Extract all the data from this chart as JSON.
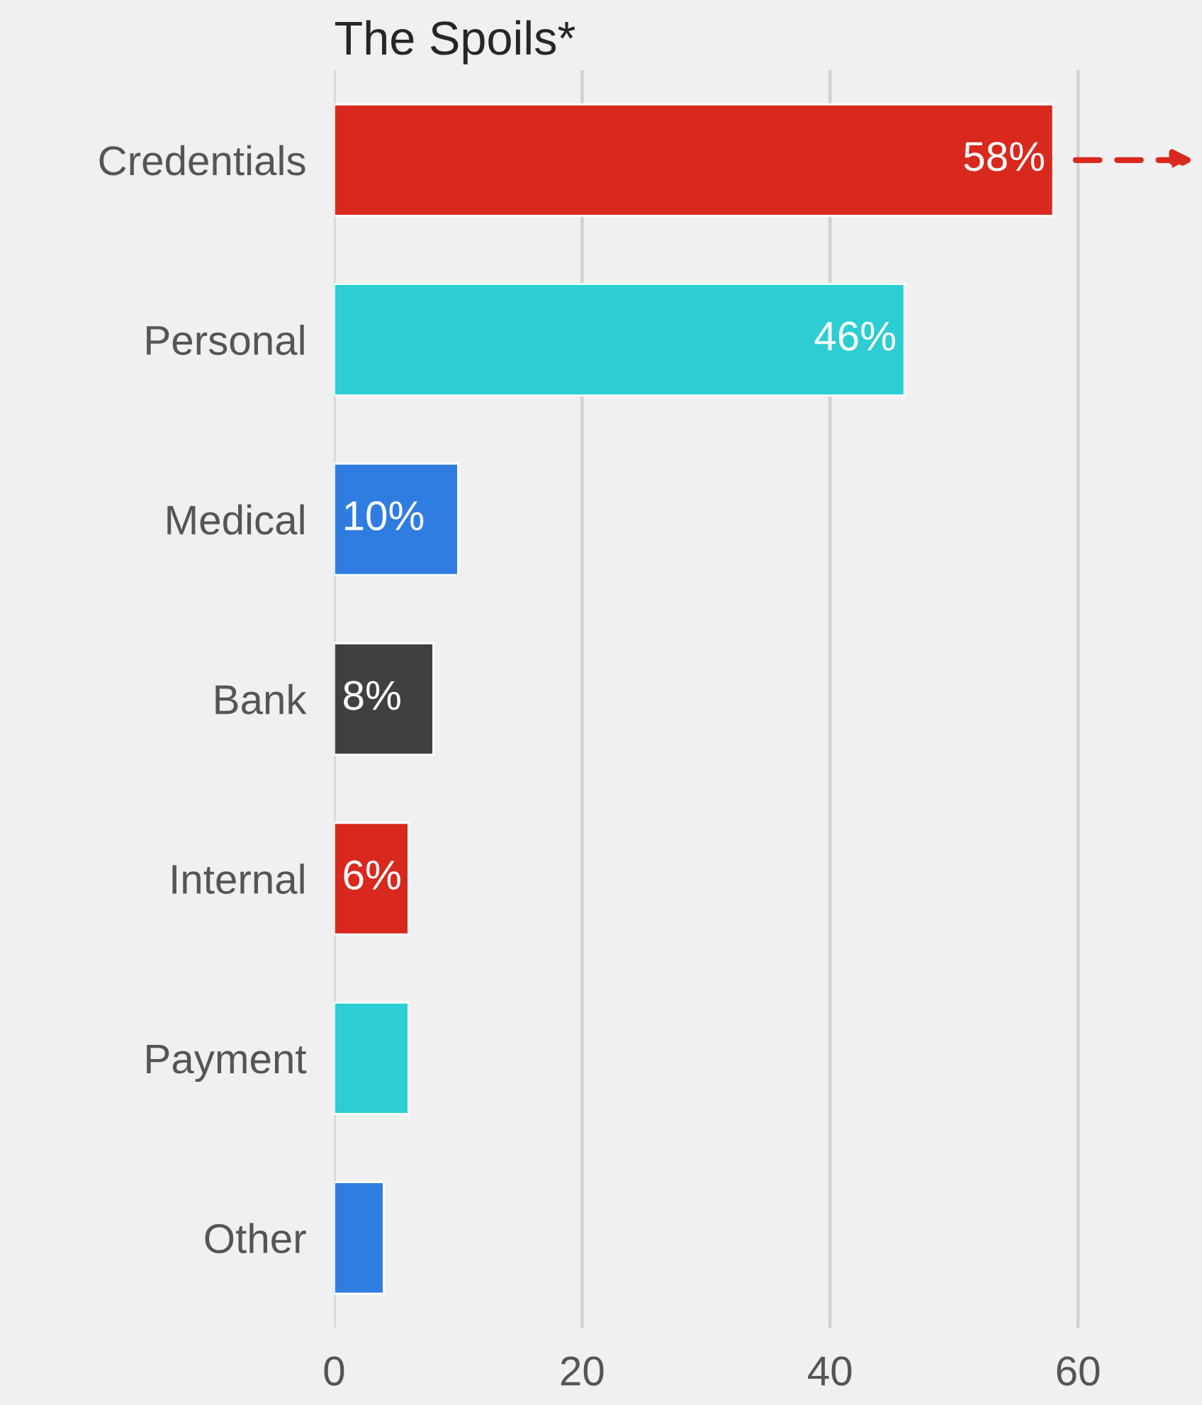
{
  "chart_data": {
    "type": "bar",
    "orientation": "horizontal",
    "title": "The Spoils*",
    "categories": [
      "Credentials",
      "Personal",
      "Medical",
      "Bank",
      "Internal",
      "Payment",
      "Other"
    ],
    "values": [
      58,
      46,
      10,
      8,
      6,
      6,
      4
    ],
    "colors": [
      "#d9291e",
      "#2ccdd3",
      "#2f7de1",
      "#404040",
      "#d9291e",
      "#2ccdd3",
      "#2f7de1"
    ],
    "value_labels": [
      "58%",
      "46%",
      "10%",
      "8%",
      "6%",
      null,
      null
    ],
    "xlim": [
      0,
      70
    ],
    "xticks": [
      0,
      20,
      40,
      60
    ],
    "grid": "x"
  }
}
